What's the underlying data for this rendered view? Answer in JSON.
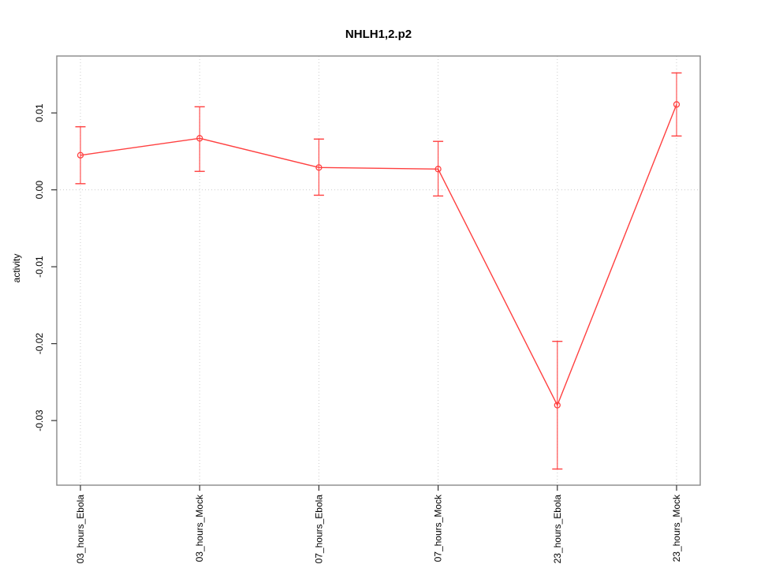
{
  "chart_data": {
    "type": "line",
    "title": "NHLH1,2.p2",
    "ylabel": "activity",
    "xlabel": "",
    "categories": [
      "03_hours_Ebola",
      "03_hours_Mock",
      "07_hours_Ebola",
      "07_hours_Mock",
      "23_hours_Ebola",
      "23_hours_Mock"
    ],
    "series": [
      {
        "name": "activity",
        "values": [
          0.0045,
          0.0067,
          0.0029,
          0.0027,
          -0.028,
          0.0111
        ],
        "error_upper": [
          0.0082,
          0.0108,
          0.0066,
          0.0063,
          -0.0197,
          0.0152
        ],
        "error_lower": [
          0.0008,
          0.0024,
          -0.0007,
          -0.0008,
          -0.0363,
          0.007
        ]
      }
    ],
    "yticks": [
      0.01,
      0,
      -0.01,
      -0.02,
      -0.03
    ],
    "ytick_labels": [
      "0.01",
      "0.00",
      "-0.01",
      "-0.02",
      "-0.03"
    ],
    "ylim": [
      -0.0384,
      0.0174
    ],
    "grid": {
      "vertical_dotted": true,
      "zero_line_dotted": true,
      "horizontal_lines": false
    },
    "legend": "none",
    "marker": "open-circle",
    "colors": {
      "series": "#ff4040",
      "box": "#888888",
      "grid": "#cccccc",
      "tick": "#333333",
      "text": "#000000"
    }
  }
}
